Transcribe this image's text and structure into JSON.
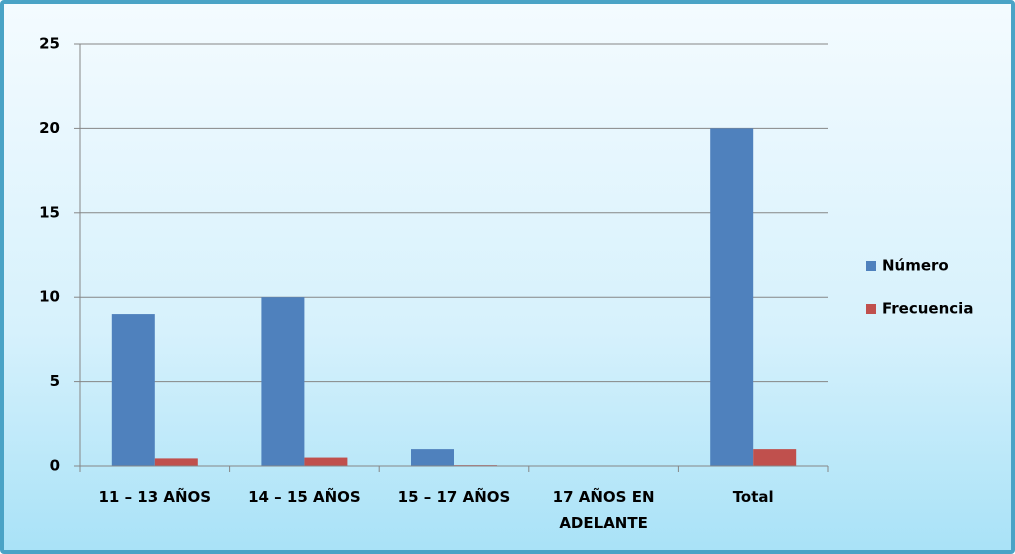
{
  "chart_data": {
    "type": "bar",
    "categories": [
      "11 – 13 AÑOS",
      "14 – 15 AÑOS",
      "15 – 17 AÑOS",
      "17 AÑOS EN ADELANTE",
      "Total"
    ],
    "series": [
      {
        "name": "Número",
        "color": "#4f81bd",
        "values": [
          9,
          10,
          1,
          0,
          20
        ]
      },
      {
        "name": "Frecuencia",
        "color": "#c0504d",
        "values": [
          0.45,
          0.5,
          0.05,
          0,
          1
        ]
      }
    ],
    "ylim": [
      0,
      25
    ],
    "yticks": [
      0,
      5,
      10,
      15,
      20,
      25
    ],
    "grid": true,
    "legend": "right"
  }
}
